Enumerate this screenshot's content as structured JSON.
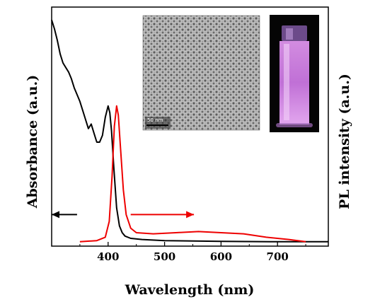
{
  "chart_data": {
    "type": "line",
    "xlabel": "Wavelength (nm)",
    "ylabel_left": "Absorbance (a.u.)",
    "ylabel_right": "PL intensity (a.u.)",
    "xlim": [
      300,
      790
    ],
    "ylim": [
      0,
      1
    ],
    "x_ticks": [
      400,
      500,
      600,
      700
    ],
    "grid": false,
    "series": [
      {
        "color": "#000000",
        "axis": "left",
        "points": [
          [
            300,
            0.99
          ],
          [
            305,
            0.95
          ],
          [
            310,
            0.9
          ],
          [
            315,
            0.84
          ],
          [
            320,
            0.8
          ],
          [
            325,
            0.78
          ],
          [
            330,
            0.76
          ],
          [
            335,
            0.73
          ],
          [
            340,
            0.69
          ],
          [
            345,
            0.66
          ],
          [
            350,
            0.63
          ],
          [
            355,
            0.59
          ],
          [
            360,
            0.55
          ],
          [
            365,
            0.51
          ],
          [
            370,
            0.53
          ],
          [
            375,
            0.49
          ],
          [
            380,
            0.45
          ],
          [
            385,
            0.45
          ],
          [
            390,
            0.48
          ],
          [
            395,
            0.56
          ],
          [
            400,
            0.61
          ],
          [
            403,
            0.58
          ],
          [
            406,
            0.5
          ],
          [
            410,
            0.34
          ],
          [
            415,
            0.16
          ],
          [
            420,
            0.08
          ],
          [
            425,
            0.05
          ],
          [
            430,
            0.035
          ],
          [
            440,
            0.025
          ],
          [
            460,
            0.02
          ],
          [
            500,
            0.015
          ],
          [
            600,
            0.012
          ],
          [
            700,
            0.01
          ],
          [
            790,
            0.01
          ]
        ]
      },
      {
        "color": "#ee0000",
        "axis": "right",
        "points": [
          [
            350,
            0.01
          ],
          [
            380,
            0.015
          ],
          [
            395,
            0.03
          ],
          [
            402,
            0.1
          ],
          [
            407,
            0.3
          ],
          [
            411,
            0.52
          ],
          [
            415,
            0.61
          ],
          [
            418,
            0.57
          ],
          [
            422,
            0.42
          ],
          [
            427,
            0.24
          ],
          [
            432,
            0.13
          ],
          [
            440,
            0.07
          ],
          [
            450,
            0.05
          ],
          [
            480,
            0.045
          ],
          [
            520,
            0.05
          ],
          [
            560,
            0.055
          ],
          [
            600,
            0.05
          ],
          [
            640,
            0.045
          ],
          [
            680,
            0.03
          ],
          [
            720,
            0.02
          ],
          [
            750,
            0.01
          ]
        ]
      }
    ],
    "annotations": [
      {
        "type": "arrow",
        "direction": "left",
        "color": "#000000",
        "x_from": 345,
        "x_to": 300,
        "y": 0.13
      },
      {
        "type": "arrow",
        "direction": "right",
        "color": "#ee0000",
        "x_from": 440,
        "x_to": 552,
        "y": 0.13
      }
    ],
    "insets": [
      {
        "name": "tem-image",
        "scale_bar_label": "50 nm"
      },
      {
        "name": "cuvette-photo"
      }
    ]
  }
}
